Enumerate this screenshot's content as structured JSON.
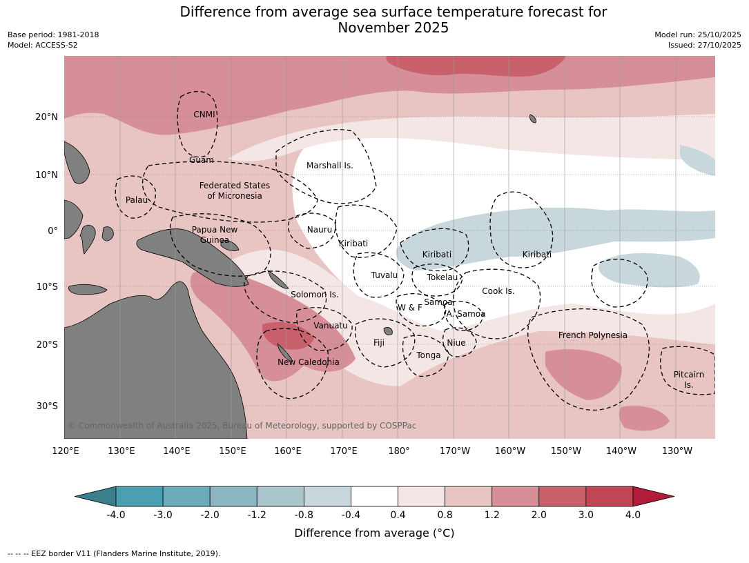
{
  "header": {
    "title_line1": "Difference from average sea surface temperature forecast for",
    "title_line2": "November 2025",
    "base_period": "Base period: 1981-2018",
    "model": "Model: ACCESS-S2",
    "model_run": "Model run: 25/10/2025",
    "issued": "Issued: 27/10/2025"
  },
  "map": {
    "lon_labels": [
      "120°E",
      "130°E",
      "140°E",
      "150°E",
      "160°E",
      "170°E",
      "180°",
      "170°W",
      "160°W",
      "150°W",
      "140°W",
      "130°W"
    ],
    "lat_labels": [
      "20°N",
      "10°N",
      "0°",
      "10°S",
      "20°S",
      "30°S"
    ],
    "copyright": "© Commonwealth of Australia 2025, Bureau of Meteorology, supported by COSPPac",
    "regions": [
      "CNMI",
      "Guam",
      "Marshall Is.",
      "Federated States",
      "of Micronesia",
      "Palau",
      "Papua New",
      "Guinea",
      "Nauru",
      "Kiribati",
      "Kiribati",
      "Kiribati",
      "Tuvalu",
      "Tokelau",
      "Cook Is.",
      "Solomon Is.",
      "W & F",
      "Samoa",
      "A. Samoa",
      "Vanuatu",
      "Fiji",
      "Niue",
      "Tonga",
      "French Polynesia",
      "New Caledonia",
      "Pitcairn",
      "Is."
    ],
    "colors": {
      "land": "#808080",
      "warm_strong": "#c9616d",
      "warm_mid": "#d68e98",
      "warm_light": "#e8c4c2",
      "warm_faint": "#f4e6e5",
      "neutral": "#ffffff",
      "cool_faint": "#c8d7dc"
    }
  },
  "colorbar": {
    "ticks": [
      "-4.0",
      "-3.0",
      "-2.0",
      "-1.2",
      "-0.8",
      "-0.4",
      "0.4",
      "0.8",
      "1.2",
      "2.0",
      "3.0",
      "4.0"
    ],
    "colors": [
      "#3b7f8c",
      "#4aa0b2",
      "#6aacbb",
      "#89b6c2",
      "#a8c6cc",
      "#c8d7dc",
      "#ffffff",
      "#f4e6e5",
      "#e8c4c2",
      "#d68e98",
      "#c9616d",
      "#c04654",
      "#b01c3a"
    ],
    "label": "Difference from average (°C)"
  },
  "footnote": "--  --  -- EEZ border V11 (Flanders Marine Institute, 2019)."
}
